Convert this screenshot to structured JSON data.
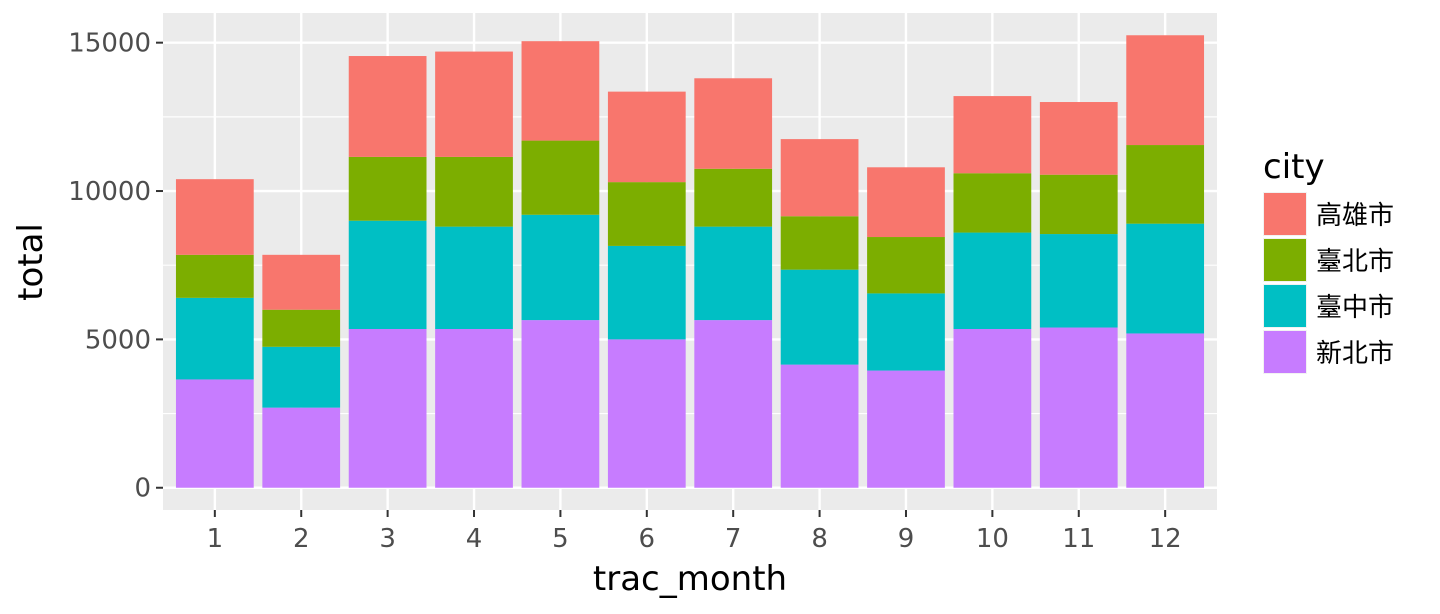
{
  "chart_data": {
    "type": "bar",
    "stacked": true,
    "xlabel": "trac_month",
    "ylabel": "total",
    "categories": [
      "1",
      "2",
      "3",
      "4",
      "5",
      "6",
      "7",
      "8",
      "9",
      "10",
      "11",
      "12"
    ],
    "ylim": [
      -750,
      16000
    ],
    "yticks": [
      0,
      5000,
      10000,
      15000
    ],
    "yticks_labels": [
      "0",
      "5000",
      "10000",
      "15000"
    ],
    "grid": true,
    "legend_title": "city",
    "legend_position": "right",
    "series": [
      {
        "name": "新北市",
        "color": "#C77CFF",
        "values": [
          3650,
          2700,
          5350,
          5350,
          5650,
          5000,
          5650,
          4150,
          3950,
          5350,
          5400,
          5200
        ]
      },
      {
        "name": "臺中市",
        "color": "#00BFC4",
        "values": [
          2750,
          2050,
          3650,
          3450,
          3550,
          3150,
          3150,
          3200,
          2600,
          3250,
          3150,
          3700
        ]
      },
      {
        "name": "臺北市",
        "color": "#7CAE00",
        "values": [
          1450,
          1250,
          2150,
          2350,
          2500,
          2150,
          1950,
          1800,
          1900,
          2000,
          2000,
          2650
        ]
      },
      {
        "name": "高雄市",
        "color": "#F8766D",
        "values": [
          2550,
          1850,
          3400,
          3550,
          3350,
          3050,
          3050,
          2600,
          2350,
          2600,
          2450,
          3700
        ]
      }
    ],
    "legend_order": [
      "高雄市",
      "臺北市",
      "臺中市",
      "新北市"
    ]
  }
}
